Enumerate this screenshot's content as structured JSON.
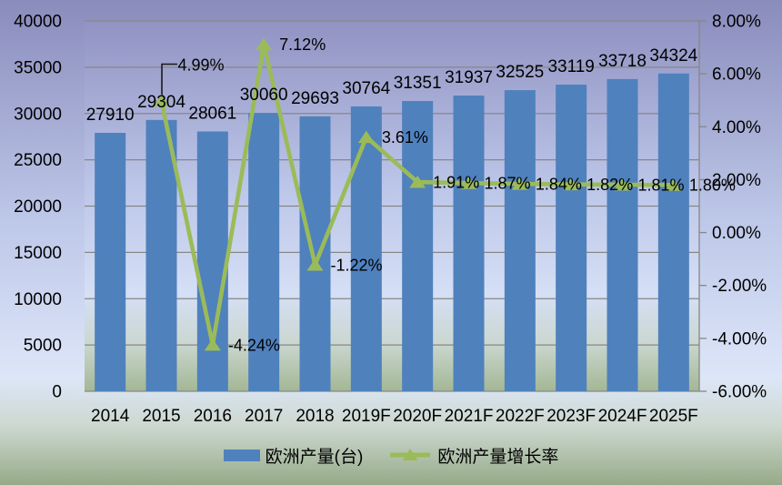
{
  "chart_data": {
    "type": "bar+line",
    "title": "",
    "categories": [
      "2014",
      "2015",
      "2016",
      "2017",
      "2018",
      "2019F",
      "2020F",
      "2021F",
      "2022F",
      "2023F",
      "2024F",
      "2025F"
    ],
    "series": [
      {
        "name": "欧洲产量(台)",
        "type": "bar",
        "color": "#4f81bd",
        "values": [
          27910,
          29304,
          28061,
          30060,
          29693,
          30764,
          31351,
          31937,
          32525,
          33119,
          33718,
          34324
        ]
      },
      {
        "name": "欧洲产量增长率",
        "type": "line",
        "color": "#9bbb59",
        "values": [
          null,
          4.99,
          -4.24,
          7.12,
          -1.22,
          3.61,
          1.91,
          1.87,
          1.84,
          1.82,
          1.81,
          1.8
        ],
        "point_labels": [
          "",
          "4.99%",
          "-4.24%",
          "7.12%",
          "-1.22%",
          "3.61%",
          "1.91%",
          "1.87%",
          "1.84%",
          "1.82%",
          "1.81%",
          "1.80%"
        ]
      }
    ],
    "left_axis": {
      "min": 0,
      "max": 40000,
      "step": 5000,
      "ticks": [
        "0",
        "5000",
        "10000",
        "15000",
        "20000",
        "25000",
        "30000",
        "35000",
        "40000"
      ]
    },
    "right_axis": {
      "min": -6,
      "max": 8,
      "step": 2,
      "ticks": [
        "-6.00%",
        "-4.00%",
        "-2.00%",
        "0.00%",
        "2.00%",
        "4.00%",
        "6.00%",
        "8.00%"
      ]
    },
    "legend": [
      "欧洲产量(台)",
      "欧洲产量增长率"
    ],
    "legend_position": "bottom",
    "grid": true,
    "callout": {
      "label": "4.99%",
      "category": "2015"
    }
  },
  "colors": {
    "bar": "#4f81bd",
    "line": "#9bbb59",
    "gridline": "#878787",
    "axis": "#878787",
    "text": "#000000",
    "callout": "#1a1a1a",
    "bg_top": "#8a8cbc",
    "bg_mid": "#dde6f8",
    "bg_bottom": "#96aa88"
  }
}
